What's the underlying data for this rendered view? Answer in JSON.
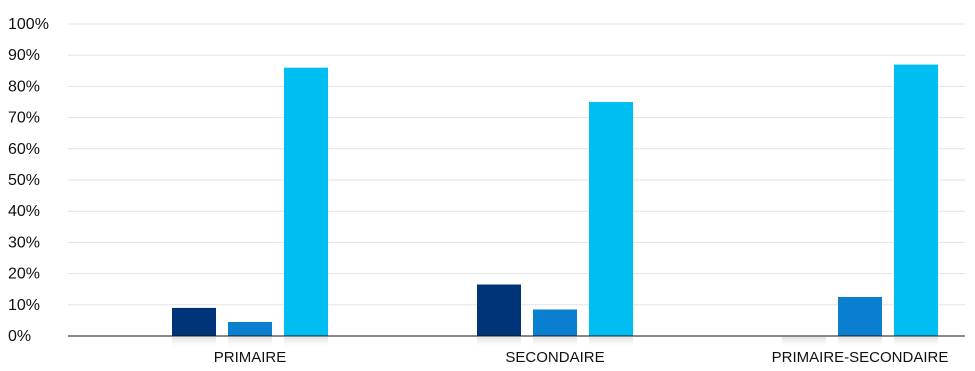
{
  "chart_data": {
    "type": "bar",
    "categories": [
      "PRIMAIRE",
      "SECONDAIRE",
      "PRIMAIRE-SECONDAIRE"
    ],
    "series": [
      {
        "values": [
          9,
          16.5,
          null
        ],
        "color": "#003478"
      },
      {
        "values": [
          4.5,
          8.5,
          12.5
        ],
        "color": "#0a7fcf"
      },
      {
        "values": [
          86,
          75,
          87
        ],
        "color": "#00bdf2"
      }
    ],
    "ylim": [
      0,
      100
    ],
    "yticks": [
      "0%",
      "10%",
      "20%",
      "30%",
      "40%",
      "50%",
      "60%",
      "70%",
      "80%",
      "90%",
      "100%"
    ],
    "grid": true,
    "legend": "none"
  }
}
